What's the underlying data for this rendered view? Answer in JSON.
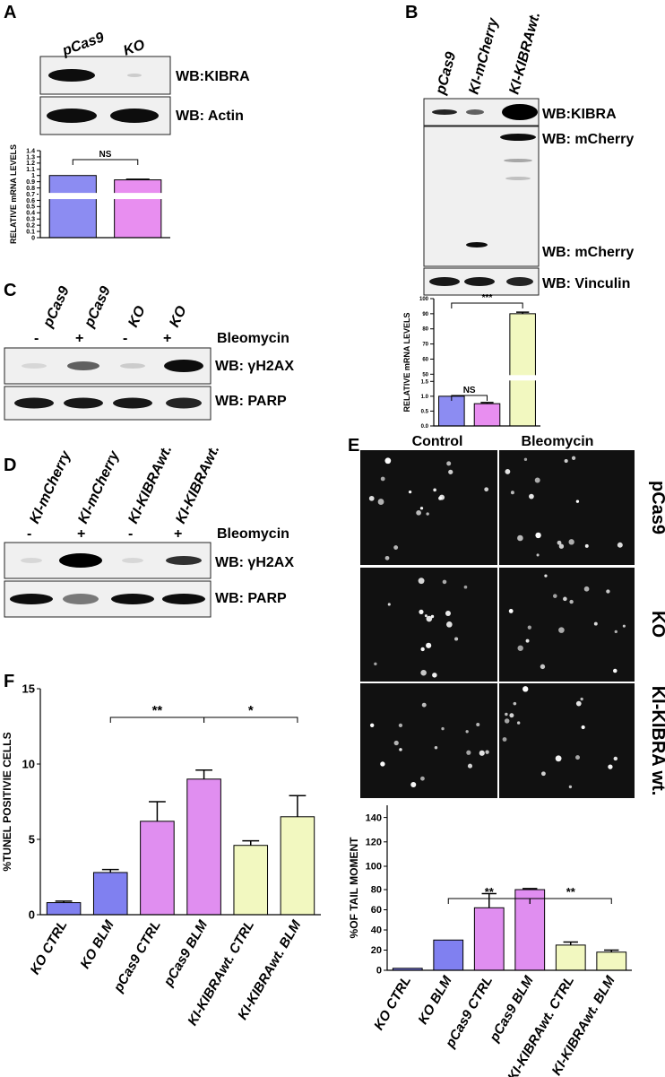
{
  "panels": {
    "a": {
      "letter": "A",
      "lanes": [
        "pCas9",
        "KO"
      ],
      "blots": [
        "WB:KIBRA",
        "WB: Actin"
      ]
    },
    "b": {
      "letter": "B",
      "lanes": [
        "pCas9",
        "KI-mCherry",
        "KI-KIBRAwt."
      ],
      "blots": [
        "WB:KIBRA",
        "WB: mCherry",
        "WB: mCherry",
        "WB: Vinculin"
      ]
    },
    "c": {
      "letter": "C",
      "lanes": [
        "pCas9",
        "pCas9",
        "KO",
        "KO"
      ],
      "treatment": [
        "-",
        "+",
        "-",
        "+"
      ],
      "treatment_label": "Bleomycin",
      "blots": [
        "WB: γH2AX",
        "WB: PARP"
      ]
    },
    "d": {
      "letter": "D",
      "lanes": [
        "KI-mCherry",
        "KI-mCherry",
        "KI-KIBRAwt.",
        "KI-KIBRAwt."
      ],
      "treatment": [
        "-",
        "+",
        "-",
        "+"
      ],
      "treatment_label": "Bleomycin",
      "blots": [
        "WB: γH2AX",
        "WB: PARP"
      ]
    },
    "e": {
      "letter": "E",
      "columns": [
        "Control",
        "Bleomycin"
      ],
      "rows": [
        "pCas9",
        "KO",
        "KI-KIBRA wt."
      ]
    },
    "f": {
      "letter": "F"
    }
  },
  "chart_data": [
    {
      "type": "bar",
      "y_label": "RELATIVE mRNA LEVELS",
      "categories": [
        null,
        null
      ],
      "values": [
        1.0,
        0.93
      ],
      "errors": [
        0,
        0.01
      ],
      "colors": [
        "#8c8cf2",
        "#e88ef0"
      ],
      "ylim": [
        0,
        1.4
      ],
      "yticks": [
        0,
        0.1,
        0.2,
        0.3,
        0.4,
        0.5,
        0.6,
        0.7,
        0.8,
        0.9,
        1,
        1.1,
        1.2,
        1.3,
        1.4
      ],
      "annotations": [
        "NS"
      ]
    },
    {
      "type": "bar",
      "y_label": "RELATIVE mRNA LEVELS",
      "categories": [
        null,
        null,
        null
      ],
      "values": [
        1.0,
        0.75,
        90
      ],
      "errors": [
        0,
        0.04,
        1
      ],
      "colors": [
        "#8c8cf2",
        "#e88ef0",
        "#f2f8c0"
      ],
      "ylim": [
        0,
        100
      ],
      "ybreak": [
        1.5,
        50
      ],
      "yticks": [
        {
          "value": 0,
          "label": "0.0"
        },
        0.5,
        {
          "value": 1,
          "label": "1.0"
        },
        1.5,
        50,
        60,
        70,
        80,
        90,
        100
      ],
      "annotations": [
        "NS",
        "***"
      ]
    },
    {
      "type": "bar",
      "y_label": "%TUNEL POSITIVIE CELLS",
      "categories": [
        "KO CTRL",
        "KO BLM",
        "pCas9 CTRL",
        "pCas9 BLM",
        "KI-KIBRAwt. CTRL",
        "KI-KIBRAwt. BLM"
      ],
      "values": [
        0.8,
        2.8,
        6.2,
        9.0,
        4.6,
        6.5
      ],
      "errors": [
        0.1,
        0.2,
        1.3,
        0.6,
        0.3,
        1.4
      ],
      "colors": [
        "#8080f0",
        "#8080f0",
        "#e08ef0",
        "#e08ef0",
        "#f2f8c0",
        "#f2f8c0"
      ],
      "ylim": [
        0,
        15
      ],
      "yticks": [
        0,
        5,
        10,
        15
      ],
      "annotations": [
        "**",
        "*"
      ]
    },
    {
      "type": "bar",
      "y_label": "%OF TAIL MOMENT",
      "categories": [
        "KO CTRL",
        "KO BLM",
        "pCas9 CTRL",
        "pCas9 BLM",
        "KI-KIBRAwt. CTRL",
        "KI-KIBRAwt. BLM"
      ],
      "values": [
        2,
        30,
        62,
        80,
        25,
        18
      ],
      "errors": [
        0,
        0,
        14,
        1,
        3,
        2
      ],
      "colors": [
        "#8080f0",
        "#8080f0",
        "#e08ef0",
        "#e08ef0",
        "#f2f8c0",
        "#f2f8c0"
      ],
      "ylim": [
        0,
        150
      ],
      "ybreak": [
        90,
        95
      ],
      "yticks": [
        0,
        20,
        40,
        60,
        80,
        100,
        120,
        140
      ],
      "annotations": [
        "**",
        "**"
      ]
    }
  ]
}
